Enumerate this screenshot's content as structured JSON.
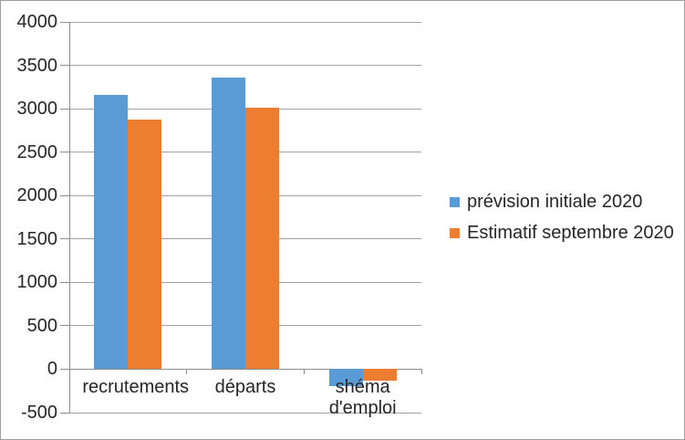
{
  "chart_data": {
    "type": "bar",
    "title": "",
    "xlabel": "",
    "ylabel": "",
    "categories": [
      "recrutements",
      "départs",
      "shéma d'emploi"
    ],
    "series": [
      {
        "name": "prévision initiale 2020",
        "color": "#5B9BD5",
        "values": [
          3160,
          3360,
          -200
        ]
      },
      {
        "name": "Estimatif septembre 2020",
        "color": "#ED7D31",
        "values": [
          2880,
          3010,
          -130
        ]
      }
    ],
    "ylim": [
      -500,
      4000
    ],
    "yticks": [
      4000,
      3500,
      3000,
      2500,
      2000,
      1500,
      1000,
      500,
      0,
      -500
    ],
    "grid": true,
    "legend_position": "right-middle",
    "colors": {
      "grid": "#a3a3a3",
      "axis": "#8e8e8e",
      "text": "#262626",
      "chart_border": "#9e9e9e",
      "background": "#ffffff"
    }
  }
}
